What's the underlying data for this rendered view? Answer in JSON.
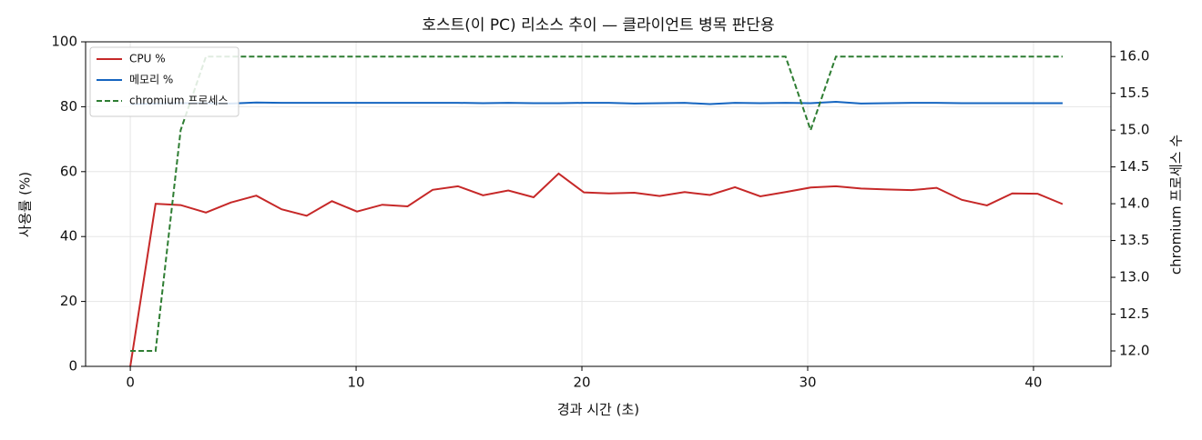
{
  "chart_data": {
    "type": "line",
    "title": "호스트(이 PC) 리소스 추이 — 클라이언트 병목 판단용",
    "xlabel": "경과 시간 (초)",
    "ylabel": "사용률 (%)",
    "y2label": "chromium 프로세스 수",
    "x": [
      0,
      1.12,
      2.23,
      3.35,
      4.46,
      5.58,
      6.7,
      7.81,
      8.93,
      10.04,
      11.16,
      12.28,
      13.39,
      14.51,
      15.62,
      16.74,
      17.86,
      18.97,
      20.09,
      21.2,
      22.32,
      23.44,
      24.55,
      25.67,
      26.78,
      27.9,
      29.02,
      30.13,
      31.25,
      32.36,
      33.48,
      34.6,
      35.71,
      36.83,
      37.94,
      39.06,
      40.18,
      41.29
    ],
    "series": [
      {
        "name": "CPU %",
        "color": "#c62828",
        "dash": false,
        "values": [
          0,
          50.1,
          49.7,
          47.4,
          50.5,
          52.6,
          48.4,
          46.4,
          50.9,
          47.7,
          49.8,
          49.3,
          54.4,
          55.5,
          52.7,
          54.2,
          52.1,
          59.4,
          53.6,
          53.3,
          53.5,
          52.5,
          53.7,
          52.8,
          55.2,
          52.4,
          53.7,
          55.1,
          55.5,
          54.8,
          54.5,
          54.3,
          55.0,
          51.3,
          49.6,
          53.3,
          53.2,
          50.0
        ]
      },
      {
        "name": "메모리 %",
        "color": "#1565c0",
        "dash": false,
        "values": [
          80.8,
          81.0,
          81.1,
          81.1,
          81.0,
          81.3,
          81.2,
          81.2,
          81.2,
          81.2,
          81.2,
          81.2,
          81.2,
          81.2,
          81.1,
          81.2,
          81.1,
          81.1,
          81.2,
          81.2,
          81.0,
          81.1,
          81.2,
          80.8,
          81.2,
          81.1,
          81.2,
          81.1,
          81.5,
          81.0,
          81.1,
          81.2,
          81.2,
          81.1,
          81.1,
          81.1,
          81.1,
          81.1
        ]
      },
      {
        "name": "chromium 프로세스",
        "color": "#2e7d32",
        "dash": true,
        "axis": "y2",
        "values": [
          12,
          12,
          15,
          16,
          16,
          16,
          16,
          16,
          16,
          16,
          16,
          16,
          16,
          16,
          16,
          16,
          16,
          16,
          16,
          16,
          16,
          16,
          16,
          16,
          16,
          16,
          16,
          15,
          16,
          16,
          16,
          16,
          16,
          16,
          16,
          16,
          16,
          16
        ]
      }
    ],
    "xlim": [
      -1.98,
      43.43
    ],
    "xticks": [
      0,
      10,
      20,
      30,
      40
    ],
    "ylim": [
      0,
      100
    ],
    "yticks": [
      0,
      20,
      40,
      60,
      80,
      100
    ],
    "y2lim": [
      11.79,
      16.2
    ],
    "y2ticks": [
      {
        "value": 12,
        "label": "12.0"
      },
      12.5,
      {
        "value": 13,
        "label": "13.0"
      },
      13.5,
      {
        "value": 14,
        "label": "14.0"
      },
      14.5,
      {
        "value": 15,
        "label": "15.0"
      },
      15.5,
      {
        "value": 16,
        "label": "16.0"
      }
    ],
    "grid": true,
    "legend": "upper-left"
  }
}
